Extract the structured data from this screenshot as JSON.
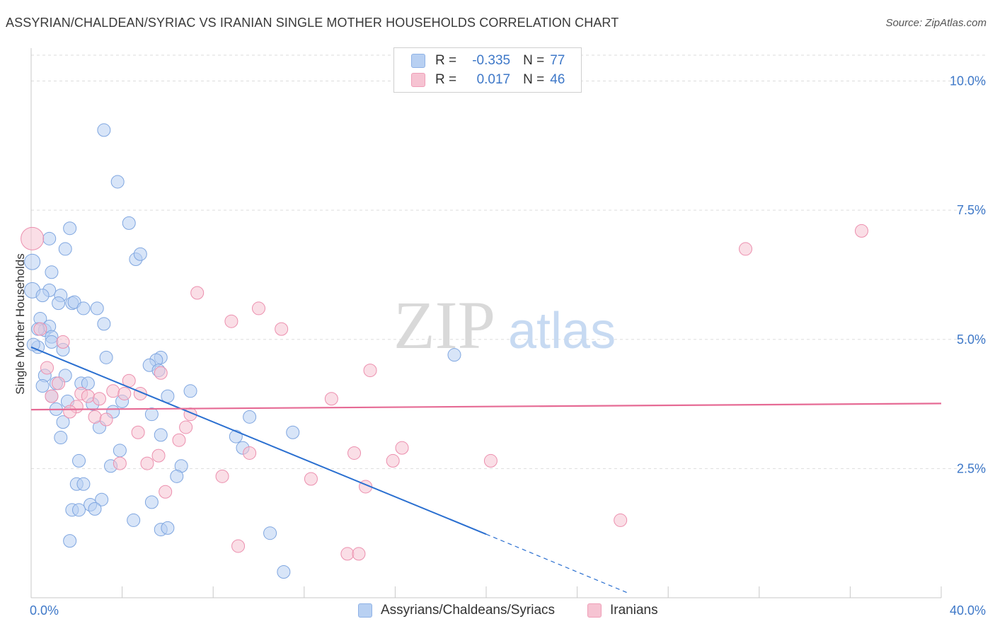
{
  "header": {
    "title": "ASSYRIAN/CHALDEAN/SYRIAC VS IRANIAN SINGLE MOTHER HOUSEHOLDS CORRELATION CHART",
    "source": "Source: ZipAtlas.com"
  },
  "legend": {
    "r_label": "R =",
    "n_label": "N =",
    "series1": {
      "r": "-0.335",
      "n": "77"
    },
    "series2": {
      "r": "0.017",
      "n": "46"
    }
  },
  "watermark": {
    "part1": "ZIP",
    "part2": "atlas"
  },
  "colors": {
    "blue_fill": "#b8d0f2",
    "blue_stroke": "#7fa6e0",
    "blue_line": "#2a6fd0",
    "pink_fill": "#f6c3d2",
    "pink_stroke": "#ec8fae",
    "pink_line": "#e66b95",
    "tick_text": "#3e78c8",
    "grid": "#dddddd"
  },
  "chart_data": {
    "type": "scatter",
    "title": "ASSYRIAN/CHALDEAN/SYRIAC VS IRANIAN SINGLE MOTHER HOUSEHOLDS CORRELATION CHART",
    "xlabel": "",
    "ylabel": "Single Mother Households",
    "xlim": [
      0,
      40
    ],
    "ylim": [
      0,
      10.5
    ],
    "x_tick_labels": [
      "0.0%",
      "40.0%"
    ],
    "y_ticks": [
      2.5,
      5.0,
      7.5,
      10.0
    ],
    "y_tick_labels": [
      "2.5%",
      "5.0%",
      "7.5%",
      "10.0%"
    ],
    "grid": "horizontal dashed",
    "series": [
      {
        "name": "Assyrians/Chaldeans/Syriacs",
        "color": "blue",
        "R": -0.335,
        "N": 77,
        "trend": {
          "x": [
            0,
            20,
            26.3
          ],
          "y": [
            4.85,
            1.23,
            0.08
          ],
          "solid_until": 20
        },
        "points": [
          [
            3.2,
            9.05
          ],
          [
            3.8,
            8.05
          ],
          [
            4.3,
            7.25
          ],
          [
            1.7,
            7.15
          ],
          [
            0.8,
            6.95
          ],
          [
            1.5,
            6.75
          ],
          [
            4.6,
            6.55
          ],
          [
            4.8,
            6.65
          ],
          [
            0.05,
            6.5
          ],
          [
            0.9,
            6.3
          ],
          [
            0.05,
            5.95
          ],
          [
            0.8,
            5.95
          ],
          [
            0.5,
            5.85
          ],
          [
            1.3,
            5.85
          ],
          [
            1.2,
            5.7
          ],
          [
            1.8,
            5.7
          ],
          [
            1.9,
            5.72
          ],
          [
            2.3,
            5.6
          ],
          [
            2.9,
            5.6
          ],
          [
            3.2,
            5.3
          ],
          [
            0.4,
            5.4
          ],
          [
            0.6,
            5.18
          ],
          [
            0.8,
            5.25
          ],
          [
            0.3,
            5.2
          ],
          [
            0.9,
            5.05
          ],
          [
            0.9,
            4.95
          ],
          [
            0.3,
            4.85
          ],
          [
            1.4,
            4.8
          ],
          [
            3.3,
            4.65
          ],
          [
            5.7,
            4.65
          ],
          [
            5.5,
            4.6
          ],
          [
            5.2,
            4.5
          ],
          [
            5.6,
            4.4
          ],
          [
            18.6,
            4.7
          ],
          [
            0.6,
            4.3
          ],
          [
            1.5,
            4.3
          ],
          [
            1.1,
            4.15
          ],
          [
            2.2,
            4.15
          ],
          [
            2.5,
            4.15
          ],
          [
            0.5,
            4.1
          ],
          [
            7.0,
            4.0
          ],
          [
            0.9,
            3.9
          ],
          [
            6.0,
            3.9
          ],
          [
            1.6,
            3.8
          ],
          [
            4.0,
            3.8
          ],
          [
            2.7,
            3.75
          ],
          [
            1.1,
            3.65
          ],
          [
            3.6,
            3.6
          ],
          [
            5.3,
            3.55
          ],
          [
            9.6,
            3.5
          ],
          [
            1.4,
            3.4
          ],
          [
            3.0,
            3.3
          ],
          [
            11.5,
            3.2
          ],
          [
            1.3,
            3.1
          ],
          [
            5.7,
            3.15
          ],
          [
            9.0,
            3.12
          ],
          [
            9.3,
            2.9
          ],
          [
            3.9,
            2.85
          ],
          [
            2.1,
            2.65
          ],
          [
            3.5,
            2.55
          ],
          [
            6.6,
            2.55
          ],
          [
            6.4,
            2.35
          ],
          [
            2.0,
            2.2
          ],
          [
            2.3,
            2.2
          ],
          [
            3.1,
            1.9
          ],
          [
            2.6,
            1.8
          ],
          [
            5.3,
            1.85
          ],
          [
            1.8,
            1.7
          ],
          [
            2.1,
            1.7
          ],
          [
            2.8,
            1.72
          ],
          [
            4.5,
            1.5
          ],
          [
            5.7,
            1.32
          ],
          [
            6.0,
            1.35
          ],
          [
            10.5,
            1.25
          ],
          [
            1.7,
            1.1
          ],
          [
            11.1,
            0.5
          ],
          [
            0.1,
            4.9
          ]
        ]
      },
      {
        "name": "Iranians",
        "color": "pink",
        "R": 0.017,
        "N": 46,
        "trend": {
          "x": [
            0,
            40
          ],
          "y": [
            3.64,
            3.76
          ]
        },
        "points": [
          [
            0.05,
            6.95
          ],
          [
            36.5,
            7.1
          ],
          [
            31.4,
            6.75
          ],
          [
            7.3,
            5.9
          ],
          [
            10.0,
            5.6
          ],
          [
            8.8,
            5.35
          ],
          [
            11.0,
            5.2
          ],
          [
            0.4,
            5.2
          ],
          [
            1.4,
            4.95
          ],
          [
            0.7,
            4.45
          ],
          [
            14.9,
            4.4
          ],
          [
            4.3,
            4.2
          ],
          [
            1.2,
            4.15
          ],
          [
            3.6,
            4.0
          ],
          [
            4.1,
            3.95
          ],
          [
            4.8,
            3.95
          ],
          [
            2.2,
            3.95
          ],
          [
            2.5,
            3.9
          ],
          [
            3.0,
            3.85
          ],
          [
            13.2,
            3.85
          ],
          [
            0.9,
            3.9
          ],
          [
            2.0,
            3.7
          ],
          [
            1.7,
            3.6
          ],
          [
            7.0,
            3.55
          ],
          [
            2.8,
            3.5
          ],
          [
            3.3,
            3.45
          ],
          [
            6.8,
            3.3
          ],
          [
            4.7,
            3.2
          ],
          [
            6.5,
            3.05
          ],
          [
            16.3,
            2.9
          ],
          [
            14.2,
            2.8
          ],
          [
            9.6,
            2.8
          ],
          [
            5.6,
            2.75
          ],
          [
            15.9,
            2.65
          ],
          [
            20.2,
            2.65
          ],
          [
            3.9,
            2.6
          ],
          [
            5.1,
            2.6
          ],
          [
            8.4,
            2.35
          ],
          [
            12.3,
            2.3
          ],
          [
            14.7,
            2.15
          ],
          [
            5.9,
            2.05
          ],
          [
            25.9,
            1.5
          ],
          [
            9.1,
            1.0
          ],
          [
            13.9,
            0.85
          ],
          [
            14.4,
            0.85
          ],
          [
            5.7,
            4.35
          ]
        ]
      }
    ]
  },
  "bottom_legend": {
    "item1": "Assyrians/Chaldeans/Syriacs",
    "item2": "Iranians"
  }
}
